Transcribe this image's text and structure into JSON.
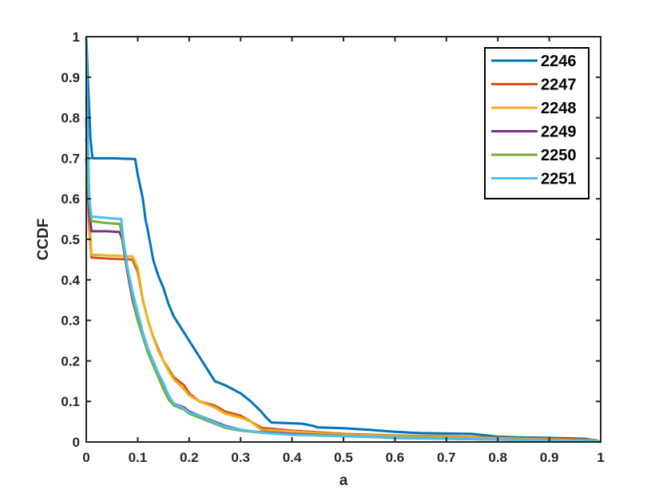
{
  "chart_data": {
    "type": "line",
    "title": "",
    "xlabel": "a",
    "ylabel": "CCDF",
    "xlim": [
      0,
      1
    ],
    "ylim": [
      0,
      1
    ],
    "xticks": [
      0,
      0.1,
      0.2,
      0.3,
      0.4,
      0.5,
      0.6,
      0.7,
      0.8,
      0.9,
      1
    ],
    "xtick_labels": [
      "0",
      "0.1",
      "0.2",
      "0.3",
      "0.4",
      "0.5",
      "0.6",
      "0.7",
      "0.8",
      "0.9",
      "1"
    ],
    "yticks": [
      0,
      0.1,
      0.2,
      0.3,
      0.4,
      0.5,
      0.6,
      0.7,
      0.8,
      0.9,
      1
    ],
    "ytick_labels": [
      "0",
      "0.1",
      "0.2",
      "0.3",
      "0.4",
      "0.5",
      "0.6",
      "0.7",
      "0.8",
      "0.9",
      "1"
    ],
    "grid": false,
    "legend_position": "top-right",
    "series": [
      {
        "name": "2246",
        "color": "#0072BD",
        "points": [
          [
            0,
            1
          ],
          [
            0.003,
            0.9
          ],
          [
            0.008,
            0.75
          ],
          [
            0.012,
            0.7
          ],
          [
            0.05,
            0.7
          ],
          [
            0.095,
            0.698
          ],
          [
            0.1,
            0.66
          ],
          [
            0.11,
            0.6
          ],
          [
            0.115,
            0.55
          ],
          [
            0.12,
            0.52
          ],
          [
            0.13,
            0.45
          ],
          [
            0.14,
            0.41
          ],
          [
            0.15,
            0.38
          ],
          [
            0.16,
            0.34
          ],
          [
            0.17,
            0.31
          ],
          [
            0.18,
            0.29
          ],
          [
            0.19,
            0.27
          ],
          [
            0.2,
            0.25
          ],
          [
            0.21,
            0.23
          ],
          [
            0.22,
            0.21
          ],
          [
            0.23,
            0.19
          ],
          [
            0.24,
            0.17
          ],
          [
            0.25,
            0.15
          ],
          [
            0.27,
            0.14
          ],
          [
            0.3,
            0.12
          ],
          [
            0.32,
            0.1
          ],
          [
            0.34,
            0.075
          ],
          [
            0.35,
            0.06
          ],
          [
            0.36,
            0.048
          ],
          [
            0.42,
            0.045
          ],
          [
            0.44,
            0.04
          ],
          [
            0.45,
            0.036
          ],
          [
            0.5,
            0.034
          ],
          [
            0.55,
            0.03
          ],
          [
            0.6,
            0.025
          ],
          [
            0.65,
            0.022
          ],
          [
            0.75,
            0.02
          ],
          [
            0.8,
            0.013
          ],
          [
            0.85,
            0.011
          ],
          [
            0.9,
            0.01
          ],
          [
            0.97,
            0.008
          ],
          [
            0.99,
            0.004
          ],
          [
            1,
            0
          ]
        ]
      },
      {
        "name": "2247",
        "color": "#D95319",
        "points": [
          [
            0,
            0.8
          ],
          [
            0.005,
            0.55
          ],
          [
            0.01,
            0.455
          ],
          [
            0.05,
            0.452
          ],
          [
            0.09,
            0.45
          ],
          [
            0.1,
            0.42
          ],
          [
            0.11,
            0.35
          ],
          [
            0.12,
            0.3
          ],
          [
            0.13,
            0.26
          ],
          [
            0.14,
            0.23
          ],
          [
            0.15,
            0.2
          ],
          [
            0.16,
            0.18
          ],
          [
            0.17,
            0.16
          ],
          [
            0.19,
            0.14
          ],
          [
            0.2,
            0.12
          ],
          [
            0.22,
            0.1
          ],
          [
            0.25,
            0.09
          ],
          [
            0.27,
            0.075
          ],
          [
            0.3,
            0.065
          ],
          [
            0.32,
            0.05
          ],
          [
            0.34,
            0.035
          ],
          [
            0.4,
            0.028
          ],
          [
            0.45,
            0.024
          ],
          [
            0.5,
            0.02
          ],
          [
            0.6,
            0.016
          ],
          [
            0.7,
            0.014
          ],
          [
            0.8,
            0.01
          ],
          [
            0.9,
            0.008
          ],
          [
            0.99,
            0.005
          ],
          [
            1,
            0
          ]
        ]
      },
      {
        "name": "2248",
        "color": "#EDB120",
        "points": [
          [
            0,
            0.85
          ],
          [
            0.005,
            0.6
          ],
          [
            0.01,
            0.462
          ],
          [
            0.05,
            0.46
          ],
          [
            0.09,
            0.458
          ],
          [
            0.1,
            0.43
          ],
          [
            0.11,
            0.35
          ],
          [
            0.12,
            0.3
          ],
          [
            0.13,
            0.26
          ],
          [
            0.14,
            0.225
          ],
          [
            0.15,
            0.2
          ],
          [
            0.16,
            0.175
          ],
          [
            0.17,
            0.155
          ],
          [
            0.19,
            0.13
          ],
          [
            0.2,
            0.115
          ],
          [
            0.22,
            0.1
          ],
          [
            0.25,
            0.085
          ],
          [
            0.27,
            0.07
          ],
          [
            0.3,
            0.06
          ],
          [
            0.32,
            0.05
          ],
          [
            0.34,
            0.03
          ],
          [
            0.4,
            0.026
          ],
          [
            0.45,
            0.022
          ],
          [
            0.5,
            0.018
          ],
          [
            0.6,
            0.015
          ],
          [
            0.7,
            0.012
          ],
          [
            0.8,
            0.009
          ],
          [
            0.9,
            0.006
          ],
          [
            0.99,
            0.004
          ],
          [
            1,
            0
          ]
        ]
      },
      {
        "name": "2249",
        "color": "#7E2F8E",
        "points": [
          [
            0,
            0.7
          ],
          [
            0.005,
            0.58
          ],
          [
            0.01,
            0.52
          ],
          [
            0.04,
            0.52
          ],
          [
            0.065,
            0.518
          ],
          [
            0.07,
            0.5
          ],
          [
            0.08,
            0.42
          ],
          [
            0.09,
            0.35
          ],
          [
            0.1,
            0.3
          ],
          [
            0.11,
            0.26
          ],
          [
            0.12,
            0.22
          ],
          [
            0.13,
            0.19
          ],
          [
            0.14,
            0.165
          ],
          [
            0.15,
            0.14
          ],
          [
            0.16,
            0.11
          ],
          [
            0.17,
            0.095
          ],
          [
            0.19,
            0.085
          ],
          [
            0.2,
            0.075
          ],
          [
            0.22,
            0.065
          ],
          [
            0.25,
            0.05
          ],
          [
            0.27,
            0.04
          ],
          [
            0.3,
            0.03
          ],
          [
            0.33,
            0.025
          ],
          [
            0.4,
            0.02
          ],
          [
            0.5,
            0.015
          ],
          [
            0.6,
            0.01
          ],
          [
            0.7,
            0.008
          ],
          [
            0.8,
            0.006
          ],
          [
            0.99,
            0.003
          ],
          [
            1,
            0
          ]
        ]
      },
      {
        "name": "2250",
        "color": "#77AC30",
        "points": [
          [
            0,
            0.75
          ],
          [
            0.005,
            0.6
          ],
          [
            0.01,
            0.545
          ],
          [
            0.04,
            0.54
          ],
          [
            0.065,
            0.538
          ],
          [
            0.07,
            0.51
          ],
          [
            0.08,
            0.43
          ],
          [
            0.09,
            0.36
          ],
          [
            0.1,
            0.3
          ],
          [
            0.11,
            0.26
          ],
          [
            0.12,
            0.22
          ],
          [
            0.13,
            0.19
          ],
          [
            0.14,
            0.16
          ],
          [
            0.15,
            0.13
          ],
          [
            0.16,
            0.105
          ],
          [
            0.17,
            0.09
          ],
          [
            0.19,
            0.08
          ],
          [
            0.2,
            0.07
          ],
          [
            0.22,
            0.06
          ],
          [
            0.25,
            0.045
          ],
          [
            0.27,
            0.035
          ],
          [
            0.3,
            0.028
          ],
          [
            0.35,
            0.022
          ],
          [
            0.4,
            0.018
          ],
          [
            0.5,
            0.015
          ],
          [
            0.6,
            0.012
          ],
          [
            0.7,
            0.009
          ],
          [
            0.8,
            0.006
          ],
          [
            0.99,
            0.003
          ],
          [
            1,
            0
          ]
        ]
      },
      {
        "name": "2251",
        "color": "#4DBEEE",
        "points": [
          [
            0,
            1
          ],
          [
            0.002,
            0.8
          ],
          [
            0.006,
            0.6
          ],
          [
            0.01,
            0.556
          ],
          [
            0.04,
            0.553
          ],
          [
            0.068,
            0.55
          ],
          [
            0.072,
            0.5
          ],
          [
            0.08,
            0.43
          ],
          [
            0.09,
            0.37
          ],
          [
            0.1,
            0.32
          ],
          [
            0.11,
            0.27
          ],
          [
            0.12,
            0.23
          ],
          [
            0.13,
            0.2
          ],
          [
            0.14,
            0.17
          ],
          [
            0.15,
            0.145
          ],
          [
            0.16,
            0.115
          ],
          [
            0.17,
            0.095
          ],
          [
            0.19,
            0.082
          ],
          [
            0.2,
            0.072
          ],
          [
            0.22,
            0.065
          ],
          [
            0.25,
            0.048
          ],
          [
            0.27,
            0.038
          ],
          [
            0.3,
            0.03
          ],
          [
            0.35,
            0.022
          ],
          [
            0.4,
            0.018
          ],
          [
            0.5,
            0.014
          ],
          [
            0.6,
            0.011
          ],
          [
            0.7,
            0.008
          ],
          [
            0.8,
            0.006
          ],
          [
            0.99,
            0.002
          ],
          [
            1,
            0
          ]
        ]
      }
    ]
  }
}
